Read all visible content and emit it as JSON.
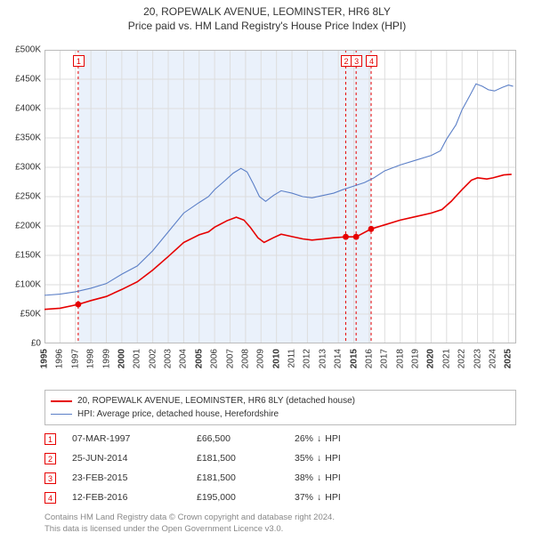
{
  "title": "20, ROPEWALK AVENUE, LEOMINSTER, HR6 8LY",
  "subtitle": "Price paid vs. HM Land Registry's House Price Index (HPI)",
  "chart": {
    "type": "line",
    "background_color": "#ffffff",
    "grid_color": "#dddddd",
    "band_color": "#eaf1fb",
    "xlim": [
      1995,
      2025.5
    ],
    "ylim": [
      0,
      500000
    ],
    "ytick_step": 50000,
    "y_ticks": [
      "£0",
      "£50K",
      "£100K",
      "£150K",
      "£200K",
      "£250K",
      "£300K",
      "£350K",
      "£400K",
      "£450K",
      "£500K"
    ],
    "x_ticks": [
      1995,
      1996,
      1997,
      1998,
      1999,
      2000,
      2001,
      2002,
      2003,
      2004,
      2005,
      2006,
      2007,
      2008,
      2009,
      2010,
      2011,
      2012,
      2013,
      2014,
      2015,
      2016,
      2017,
      2018,
      2019,
      2020,
      2021,
      2022,
      2023,
      2024,
      2025
    ],
    "x_ticks_bold": [
      1995,
      2000,
      2005,
      2010,
      2015,
      2020,
      2025
    ],
    "label_fontsize": 10,
    "line_width_main": 1.6,
    "line_width_hpi": 1.1,
    "marker_radius": 3.4,
    "event_line_dash": "3,3",
    "series": [
      {
        "id": "price_paid",
        "color": "#e60000",
        "points": [
          [
            1995,
            58000
          ],
          [
            1996,
            60000
          ],
          [
            1997.18,
            66500
          ],
          [
            1998,
            73000
          ],
          [
            1999,
            80000
          ],
          [
            2000,
            92000
          ],
          [
            2001,
            105000
          ],
          [
            2002,
            125000
          ],
          [
            2003,
            148000
          ],
          [
            2004,
            172000
          ],
          [
            2005,
            185000
          ],
          [
            2005.6,
            190000
          ],
          [
            2006,
            198000
          ],
          [
            2006.8,
            209000
          ],
          [
            2007.4,
            215000
          ],
          [
            2007.9,
            210000
          ],
          [
            2008.3,
            198000
          ],
          [
            2008.8,
            180000
          ],
          [
            2009.2,
            172000
          ],
          [
            2009.8,
            180000
          ],
          [
            2010.3,
            186000
          ],
          [
            2011,
            182000
          ],
          [
            2011.7,
            178000
          ],
          [
            2012.3,
            176000
          ],
          [
            2013,
            178000
          ],
          [
            2013.7,
            180000
          ],
          [
            2014.48,
            181500
          ],
          [
            2015.15,
            181500
          ],
          [
            2016.12,
            195000
          ],
          [
            2017,
            202000
          ],
          [
            2018,
            210000
          ],
          [
            2019,
            216000
          ],
          [
            2020,
            222000
          ],
          [
            2020.7,
            228000
          ],
          [
            2021.3,
            242000
          ],
          [
            2022,
            262000
          ],
          [
            2022.6,
            278000
          ],
          [
            2023,
            282000
          ],
          [
            2023.6,
            280000
          ],
          [
            2024,
            282000
          ],
          [
            2024.7,
            287000
          ],
          [
            2025.2,
            288000
          ]
        ],
        "markers": [
          [
            1997.18,
            66500
          ],
          [
            2014.48,
            181500
          ],
          [
            2015.15,
            181500
          ],
          [
            2016.12,
            195000
          ]
        ]
      },
      {
        "id": "hpi",
        "color": "#5b7fc7",
        "points": [
          [
            1995,
            82000
          ],
          [
            1996,
            84000
          ],
          [
            1997,
            88000
          ],
          [
            1998,
            94000
          ],
          [
            1999,
            102000
          ],
          [
            2000,
            118000
          ],
          [
            2001,
            132000
          ],
          [
            2002,
            158000
          ],
          [
            2003,
            190000
          ],
          [
            2004,
            222000
          ],
          [
            2005,
            240000
          ],
          [
            2005.6,
            250000
          ],
          [
            2006,
            262000
          ],
          [
            2006.7,
            278000
          ],
          [
            2007.2,
            290000
          ],
          [
            2007.7,
            298000
          ],
          [
            2008.1,
            292000
          ],
          [
            2008.5,
            272000
          ],
          [
            2008.9,
            250000
          ],
          [
            2009.3,
            242000
          ],
          [
            2009.8,
            252000
          ],
          [
            2010.3,
            260000
          ],
          [
            2011,
            256000
          ],
          [
            2011.7,
            250000
          ],
          [
            2012.3,
            248000
          ],
          [
            2013,
            252000
          ],
          [
            2013.7,
            256000
          ],
          [
            2014.3,
            262000
          ],
          [
            2015,
            268000
          ],
          [
            2015.7,
            274000
          ],
          [
            2016.3,
            282000
          ],
          [
            2017,
            294000
          ],
          [
            2018,
            304000
          ],
          [
            2019,
            312000
          ],
          [
            2020,
            320000
          ],
          [
            2020.6,
            328000
          ],
          [
            2021,
            348000
          ],
          [
            2021.6,
            372000
          ],
          [
            2022,
            398000
          ],
          [
            2022.5,
            422000
          ],
          [
            2022.9,
            442000
          ],
          [
            2023.3,
            438000
          ],
          [
            2023.7,
            432000
          ],
          [
            2024.1,
            430000
          ],
          [
            2024.6,
            436000
          ],
          [
            2025,
            440000
          ],
          [
            2025.3,
            438000
          ]
        ]
      }
    ],
    "event_lines": [
      {
        "n": 1,
        "x": 1997.18,
        "color": "#e60000"
      },
      {
        "n": 2,
        "x": 2014.48,
        "color": "#e60000"
      },
      {
        "n": 3,
        "x": 2015.15,
        "color": "#e60000"
      },
      {
        "n": 4,
        "x": 2016.12,
        "color": "#e60000"
      }
    ]
  },
  "legend": {
    "items": [
      {
        "color": "#e60000",
        "width": 2,
        "label": "20, ROPEWALK AVENUE, LEOMINSTER, HR6 8LY (detached house)"
      },
      {
        "color": "#5b7fc7",
        "width": 1,
        "label": "HPI: Average price, detached house, Herefordshire"
      }
    ]
  },
  "events": [
    {
      "n": 1,
      "color": "#e60000",
      "date": "07-MAR-1997",
      "price": "£66,500",
      "diff_pct": "26%",
      "diff_label": "HPI"
    },
    {
      "n": 2,
      "color": "#e60000",
      "date": "25-JUN-2014",
      "price": "£181,500",
      "diff_pct": "35%",
      "diff_label": "HPI"
    },
    {
      "n": 3,
      "color": "#e60000",
      "date": "23-FEB-2015",
      "price": "£181,500",
      "diff_pct": "38%",
      "diff_label": "HPI"
    },
    {
      "n": 4,
      "color": "#e60000",
      "date": "12-FEB-2016",
      "price": "£195,000",
      "diff_pct": "37%",
      "diff_label": "HPI"
    }
  ],
  "footer": {
    "line1": "Contains HM Land Registry data © Crown copyright and database right 2024.",
    "line2": "This data is licensed under the Open Government Licence v3.0."
  }
}
